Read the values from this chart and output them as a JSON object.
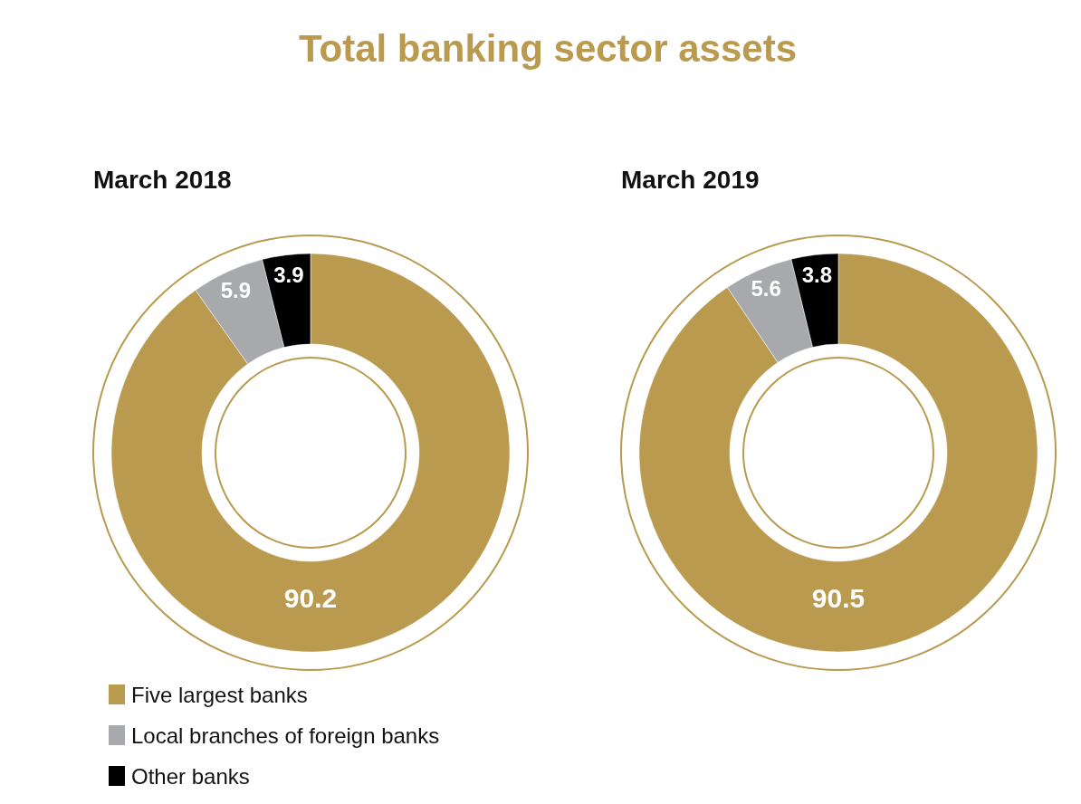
{
  "chart_data": [
    {
      "type": "donut",
      "title": "Total banking sector assets",
      "subtitle": "March 2018",
      "categories": [
        "Five largest banks",
        "Local branches of foreign banks",
        "Other banks"
      ],
      "values": [
        90.2,
        5.9,
        3.9
      ],
      "colors": [
        "#b99a4f",
        "#a7a9ac",
        "#000000"
      ],
      "data_labels": true,
      "legend": "bottom"
    },
    {
      "type": "donut",
      "subtitle": "March 2019",
      "categories": [
        null,
        null,
        null
      ],
      "values": [
        90.5,
        5.6,
        3.8
      ],
      "colors": [
        "#b99a4f",
        "#a7a9ac",
        "#000000"
      ],
      "data_labels": true,
      "legend": false
    }
  ]
}
